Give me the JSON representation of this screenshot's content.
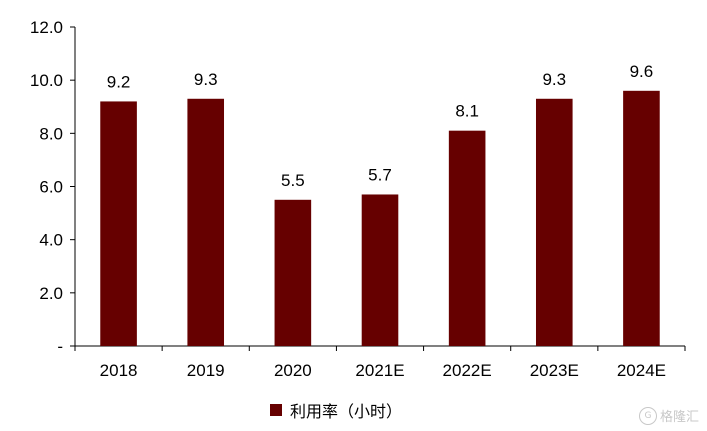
{
  "chart_data": {
    "type": "bar",
    "categories": [
      "2018",
      "2019",
      "2020",
      "2021E",
      "2022E",
      "2023E",
      "2024E"
    ],
    "series": [
      {
        "name": "利用率（小时）",
        "values": [
          9.2,
          9.3,
          5.5,
          5.7,
          8.1,
          9.3,
          9.6
        ],
        "color": "#660000"
      }
    ],
    "data_labels": [
      "9.2",
      "9.3",
      "5.5",
      "5.7",
      "8.1",
      "9.3",
      "9.6"
    ],
    "y_ticks": [
      {
        "value": 0,
        "label": "-"
      },
      {
        "value": 2,
        "label": "2.0"
      },
      {
        "value": 4,
        "label": "4.0"
      },
      {
        "value": 6,
        "label": "6.0"
      },
      {
        "value": 8,
        "label": "8.0"
      },
      {
        "value": 10,
        "label": "10.0"
      },
      {
        "value": 12,
        "label": "12.0"
      }
    ],
    "ylim": [
      0,
      12
    ],
    "grid": false,
    "legend_position": "bottom-center"
  },
  "legend": {
    "label": "利用率（小时）",
    "color": "#660000"
  },
  "watermark": {
    "logo": "G",
    "text": "格隆汇"
  }
}
